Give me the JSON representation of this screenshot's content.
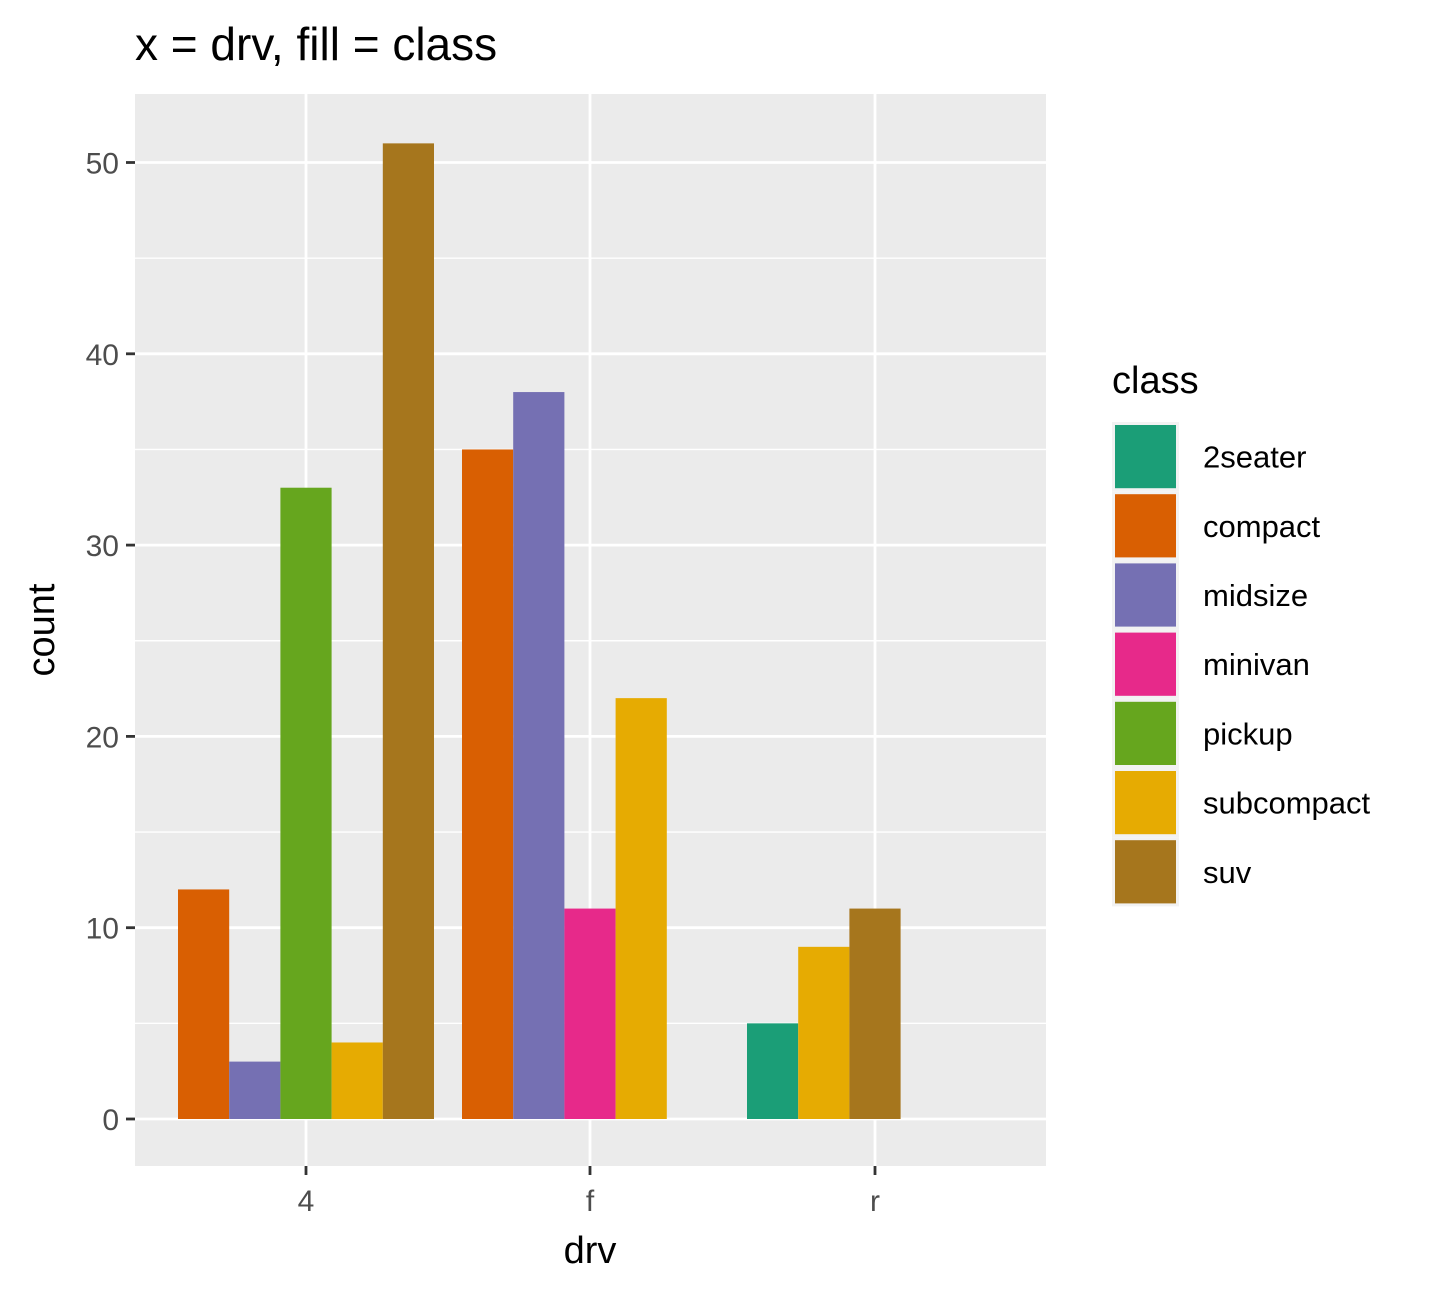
{
  "chart_data": {
    "type": "bar",
    "title": "x = drv, fill = class",
    "xlabel": "drv",
    "ylabel": "count",
    "categories": [
      "4",
      "f",
      "r"
    ],
    "ylim": [
      0,
      53.5
    ],
    "yticks": [
      0,
      10,
      20,
      30,
      40,
      50
    ],
    "grid": true,
    "legend": {
      "title": "class",
      "position": "right"
    },
    "classes": [
      {
        "name": "2seater",
        "color": "#1B9E77"
      },
      {
        "name": "compact",
        "color": "#D95F02"
      },
      {
        "name": "midsize",
        "color": "#7570B3"
      },
      {
        "name": "minivan",
        "color": "#E7298A"
      },
      {
        "name": "pickup",
        "color": "#66A61E"
      },
      {
        "name": "subcompact",
        "color": "#E6AB02"
      },
      {
        "name": "suv",
        "color": "#A6761D"
      }
    ],
    "groups": [
      {
        "category": "4",
        "bars": [
          {
            "class": "compact",
            "value": 12
          },
          {
            "class": "midsize",
            "value": 3
          },
          {
            "class": "pickup",
            "value": 33
          },
          {
            "class": "subcompact",
            "value": 4
          },
          {
            "class": "suv",
            "value": 51
          }
        ]
      },
      {
        "category": "f",
        "bars": [
          {
            "class": "compact",
            "value": 35
          },
          {
            "class": "midsize",
            "value": 38
          },
          {
            "class": "minivan",
            "value": 11
          },
          {
            "class": "subcompact",
            "value": 22
          }
        ]
      },
      {
        "category": "r",
        "bars": [
          {
            "class": "2seater",
            "value": 5
          },
          {
            "class": "subcompact",
            "value": 9
          },
          {
            "class": "suv",
            "value": 11
          }
        ]
      }
    ]
  }
}
